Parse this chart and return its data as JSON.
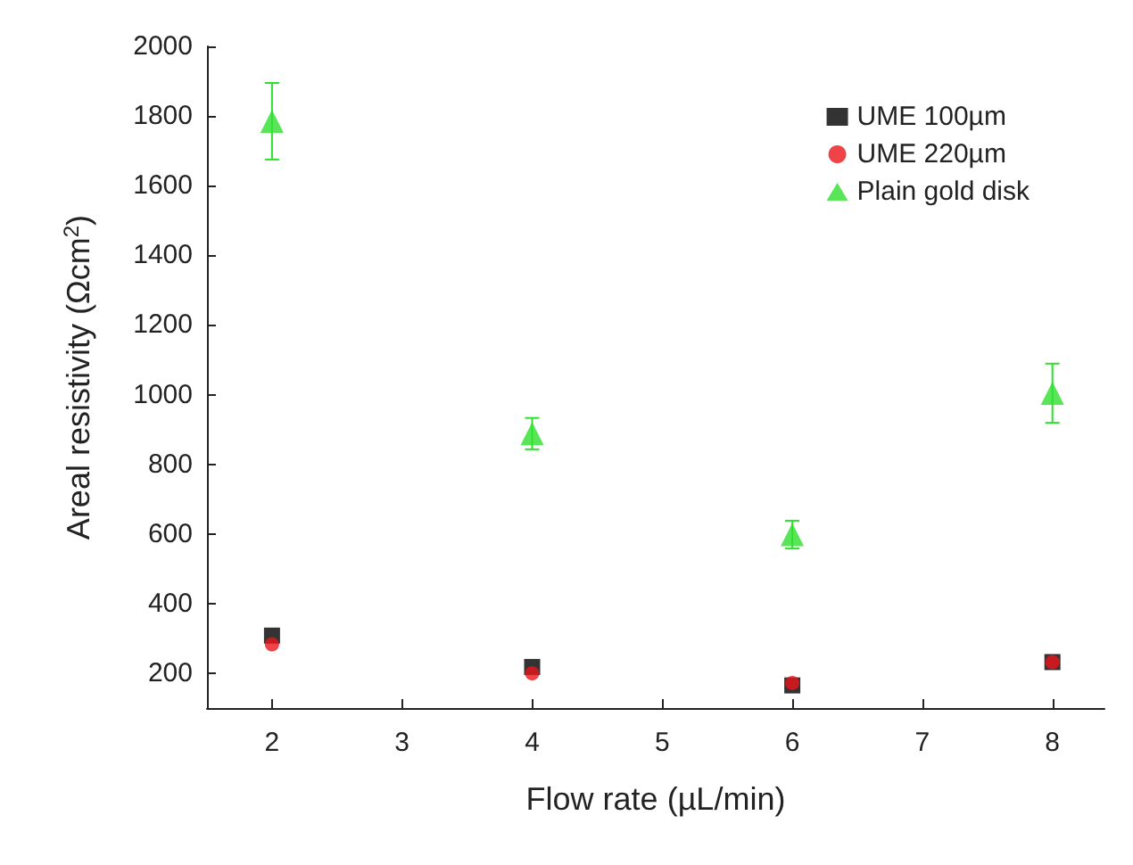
{
  "chart_data": {
    "type": "scatter",
    "xlabel": "Flow rate (µL/min)",
    "ylabel": "Areal resistivity (Ωcm$^{2}$)",
    "x": [
      2,
      4,
      6,
      8
    ],
    "xlim": [
      1.5,
      8.4
    ],
    "xticks": [
      2,
      3,
      4,
      5,
      6,
      7,
      8
    ],
    "ylim": [
      100,
      2000
    ],
    "yticks": [
      200,
      400,
      600,
      800,
      1000,
      1200,
      1400,
      1600,
      1800,
      2000
    ],
    "grid": false,
    "legend": "top right",
    "series": [
      {
        "name": "UME 100µm",
        "color": "#000000",
        "marker": "square",
        "values": [
          308,
          218,
          165,
          232
        ]
      },
      {
        "name": "UME 220µm",
        "color": "#e8141b",
        "marker": "circle",
        "values": [
          283,
          200,
          172,
          232
        ]
      },
      {
        "name": "Plain gold disk",
        "color": "#2ee02e",
        "marker": "triangle",
        "values": [
          1785,
          888,
          598,
          1004
        ],
        "errors": [
          110,
          45,
          40,
          85
        ]
      }
    ]
  }
}
